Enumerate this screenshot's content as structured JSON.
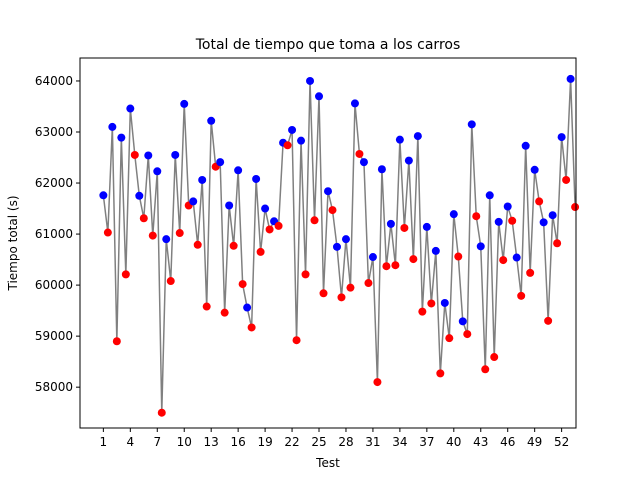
{
  "chart_data": {
    "type": "line",
    "title": "Total de tiempo que toma a los carros",
    "xlabel": "Test",
    "ylabel": "Tiempo total (s)",
    "xlim": [
      -1.6,
      53.6
    ],
    "ylim": [
      57200,
      64450
    ],
    "xticks": [
      1,
      4,
      7,
      10,
      13,
      16,
      19,
      22,
      25,
      28,
      31,
      34,
      37,
      40,
      43,
      46,
      49,
      52
    ],
    "yticks": [
      58000,
      59000,
      60000,
      61000,
      62000,
      63000,
      64000
    ],
    "grid": false,
    "line_color": "#808080",
    "marker_colors": [
      "#0000ff",
      "#ff0000"
    ],
    "values": [
      61760,
      61030,
      63100,
      58900,
      62890,
      60210,
      63460,
      62550,
      61750,
      61310,
      62540,
      60970,
      62230,
      57500,
      60900,
      60080,
      62550,
      61020,
      63550,
      61560,
      61640,
      60790,
      62060,
      59580,
      63220,
      62320,
      62410,
      59460,
      61560,
      60770,
      62250,
      60020,
      59560,
      59170,
      62080,
      60650,
      61500,
      61090,
      61250,
      61160,
      62790,
      62740,
      63040,
      58920,
      62830,
      60210,
      64000,
      61270,
      63700,
      59840,
      61840,
      61470,
      60750,
      59760,
      60900,
      59950,
      63560,
      62570,
      62410,
      60040,
      60550,
      58100,
      62270,
      60370,
      61200,
      60390,
      62850,
      61120,
      62440,
      60510,
      62920,
      59480,
      61140,
      59640,
      60670,
      58270,
      59650,
      58960,
      61390,
      60560,
      59290,
      59040,
      63150,
      61350,
      60760,
      58350,
      61760,
      58590,
      61240,
      60490,
      61540,
      61260,
      60540,
      59790,
      62730,
      60240,
      62260,
      61640,
      61230,
      59300,
      61370,
      60820,
      62900,
      62060,
      64040,
      61530
    ]
  }
}
